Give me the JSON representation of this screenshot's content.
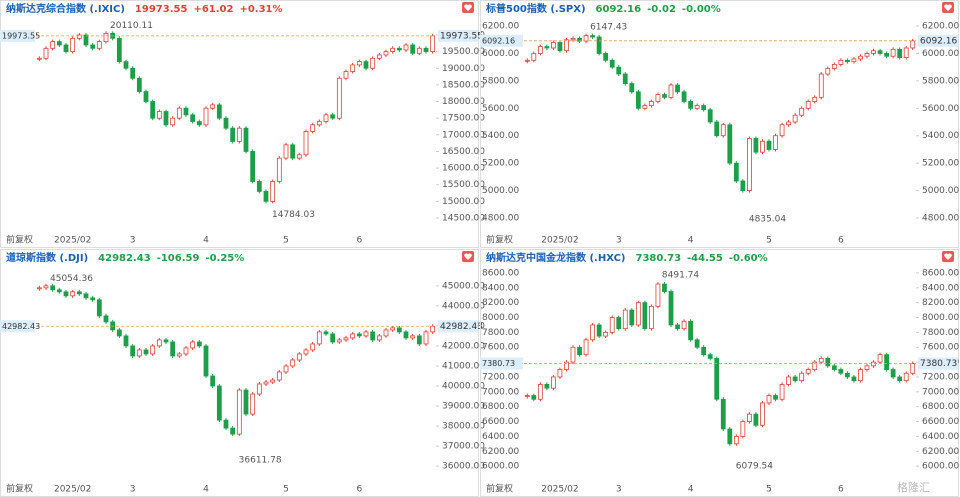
{
  "chart_data": [
    {
      "type": "candlestick",
      "title": "纳斯达克综合指数 (.IXIC)",
      "price": 19973.55,
      "change": "+61.02",
      "change_pct": "+0.31%",
      "price_color": "#e0403a",
      "adjust_label": "前复权",
      "axis_sides": [
        "right"
      ],
      "up_color": "#e0403a",
      "down_color": "#1f9e4a",
      "categories": [
        null,
        null,
        null,
        null,
        null,
        "2025/02",
        null,
        null,
        null,
        null,
        null,
        null,
        null,
        null,
        "3",
        null,
        null,
        null,
        null,
        null,
        null,
        null,
        null,
        null,
        null,
        "4",
        null,
        null,
        null,
        null,
        null,
        null,
        null,
        null,
        null,
        null,
        null,
        "5",
        null,
        null,
        null,
        null,
        null,
        null,
        null,
        null,
        null,
        null,
        "6",
        null,
        null,
        null,
        null,
        null,
        null,
        null,
        null,
        null,
        null,
        null
      ],
      "values": [
        19300,
        19600,
        19800,
        19700,
        19500,
        19900,
        20000,
        19700,
        19600,
        19800,
        20050,
        19900,
        19200,
        19000,
        18700,
        18300,
        18000,
        17500,
        17700,
        17300,
        17500,
        17800,
        17600,
        17400,
        17300,
        17800,
        17900,
        17500,
        17200,
        16800,
        17200,
        16500,
        15600,
        15300,
        15000,
        15600,
        16300,
        16700,
        16300,
        16400,
        17100,
        17300,
        17400,
        17600,
        17500,
        18700,
        18900,
        19100,
        19200,
        19000,
        19300,
        19400,
        19500,
        19600,
        19550,
        19700,
        19450,
        19600,
        19500,
        19973.55
      ],
      "high": 20110.11,
      "low": 14784.03,
      "ylim": [
        14080,
        20450
      ],
      "yticks": [
        {
          "value": 14500,
          "label": "14500.00"
        },
        {
          "value": 15000,
          "label": "15000.00"
        },
        {
          "value": 15500,
          "label": "15500.00"
        },
        {
          "value": 16000,
          "label": "16000.00"
        },
        {
          "value": 16500,
          "label": "16500.00"
        },
        {
          "value": 17000,
          "label": "17000.00"
        },
        {
          "value": 17500,
          "label": "17500.00"
        },
        {
          "value": 18000,
          "label": "18000.00"
        },
        {
          "value": 18500,
          "label": "18500.00"
        },
        {
          "value": 19000,
          "label": "19000.00"
        },
        {
          "value": 19500,
          "label": "19500.00"
        },
        {
          "value": 20000,
          "label": "20000.00"
        }
      ]
    },
    {
      "type": "candlestick",
      "title": "标普500指数 (.SPX)",
      "price": 6092.16,
      "change": "-0.02",
      "change_pct": "-0.00%",
      "price_color": "#1f9e4a",
      "adjust_label": "前复权",
      "axis_sides": [
        "left",
        "right"
      ],
      "up_color": "#e0403a",
      "down_color": "#1f9e4a",
      "categories": [
        null,
        null,
        null,
        null,
        null,
        "2025/02",
        null,
        null,
        null,
        null,
        null,
        null,
        null,
        null,
        "3",
        null,
        null,
        null,
        null,
        null,
        null,
        null,
        null,
        null,
        null,
        "4",
        null,
        null,
        null,
        null,
        null,
        null,
        null,
        null,
        null,
        null,
        null,
        "5",
        null,
        null,
        null,
        null,
        null,
        null,
        null,
        null,
        null,
        null,
        "6",
        null,
        null,
        null,
        null,
        null,
        null,
        null,
        null,
        null,
        null,
        null
      ],
      "values": [
        5950,
        6000,
        6050,
        6040,
        6080,
        6020,
        6100,
        6110,
        6090,
        6130,
        6120,
        6000,
        5950,
        5900,
        5850,
        5780,
        5720,
        5600,
        5620,
        5650,
        5700,
        5680,
        5770,
        5720,
        5650,
        5600,
        5620,
        5590,
        5500,
        5400,
        5480,
        5200,
        5070,
        5000,
        5380,
        5280,
        5360,
        5300,
        5400,
        5480,
        5500,
        5550,
        5600,
        5650,
        5680,
        5850,
        5890,
        5920,
        5950,
        5940,
        5960,
        5980,
        6000,
        6020,
        6000,
        5980,
        6030,
        5970,
        6040,
        6092.16
      ],
      "high": 6147.43,
      "low": 4835.04,
      "ylim": [
        4698,
        6244
      ],
      "yticks": [
        {
          "value": 4800,
          "label": "4800.00"
        },
        {
          "value": 5000,
          "label": "5000.00"
        },
        {
          "value": 5200,
          "label": "5200.00"
        },
        {
          "value": 5400,
          "label": "5400.00"
        },
        {
          "value": 5600,
          "label": "5600.00"
        },
        {
          "value": 5800,
          "label": "5800.00"
        },
        {
          "value": 6000,
          "label": "6000.00"
        },
        {
          "value": 6200,
          "label": "6200.00"
        }
      ]
    },
    {
      "type": "candlestick",
      "title": "道琼斯指数 (.DJI)",
      "price": 42982.43,
      "change": "-106.59",
      "change_pct": "-0.25%",
      "price_color": "#1f9e4a",
      "adjust_label": "前复权",
      "axis_sides": [
        "right"
      ],
      "up_color": "#e0403a",
      "down_color": "#1f9e4a",
      "categories": [
        null,
        null,
        null,
        null,
        null,
        "2025/02",
        null,
        null,
        null,
        null,
        null,
        null,
        null,
        null,
        "3",
        null,
        null,
        null,
        null,
        null,
        null,
        null,
        null,
        null,
        null,
        "4",
        null,
        null,
        null,
        null,
        null,
        null,
        null,
        null,
        null,
        null,
        null,
        "5",
        null,
        null,
        null,
        null,
        null,
        null,
        null,
        null,
        null,
        null,
        "6",
        null,
        null,
        null,
        null,
        null,
        null,
        null,
        null,
        null,
        null,
        null
      ],
      "values": [
        44900,
        45000,
        44800,
        44700,
        44500,
        44700,
        44600,
        44400,
        44300,
        43500,
        43200,
        42800,
        42500,
        42000,
        41500,
        41800,
        41600,
        42000,
        42300,
        42200,
        41500,
        41600,
        41900,
        42200,
        42000,
        40500,
        40000,
        38300,
        37900,
        37600,
        39800,
        38600,
        39600,
        40100,
        40200,
        40300,
        40700,
        41000,
        41300,
        41600,
        41800,
        42100,
        42700,
        42600,
        42200,
        42300,
        42400,
        42600,
        42500,
        42700,
        42300,
        42500,
        42800,
        42900,
        42700,
        42400,
        42500,
        42100,
        42700,
        42982.43
      ],
      "high": 45054.36,
      "low": 36611.78,
      "ylim": [
        35260,
        45840
      ],
      "yticks": [
        {
          "value": 36000,
          "label": "36000.00"
        },
        {
          "value": 37000,
          "label": "37000.00"
        },
        {
          "value": 38000,
          "label": "38000.00"
        },
        {
          "value": 39000,
          "label": "39000.00"
        },
        {
          "value": 40000,
          "label": "40000.00"
        },
        {
          "value": 41000,
          "label": "41000.00"
        },
        {
          "value": 42000,
          "label": "42000.00"
        },
        {
          "value": 43000,
          "label": "43000.00"
        },
        {
          "value": 44000,
          "label": "44000.00"
        },
        {
          "value": 45000,
          "label": "45000.00"
        }
      ]
    },
    {
      "type": "candlestick",
      "title": "纳斯达克中国金龙指数 (.HXC)",
      "price": 7380.73,
      "change": "-44.55",
      "change_pct": "-0.60%",
      "price_color": "#1f9e4a",
      "adjust_label": "前复权",
      "axis_sides": [
        "left",
        "right"
      ],
      "up_color": "#e0403a",
      "down_color": "#1f9e4a",
      "categories": [
        null,
        null,
        null,
        null,
        null,
        "2025/02",
        null,
        null,
        null,
        null,
        null,
        null,
        null,
        null,
        "3",
        null,
        null,
        null,
        null,
        null,
        null,
        null,
        null,
        null,
        null,
        "4",
        null,
        null,
        null,
        null,
        null,
        null,
        null,
        null,
        null,
        null,
        null,
        "5",
        null,
        null,
        null,
        null,
        null,
        null,
        null,
        null,
        null,
        null,
        "6",
        null,
        null,
        null,
        null,
        null,
        null,
        null,
        null,
        null,
        null,
        null
      ],
      "values": [
        6950,
        6900,
        7100,
        7050,
        7200,
        7300,
        7400,
        7600,
        7500,
        7700,
        7900,
        7750,
        7800,
        8000,
        7850,
        8100,
        7900,
        8200,
        7850,
        8150,
        8450,
        8350,
        7900,
        7850,
        7950,
        7700,
        7600,
        7500,
        7450,
        6900,
        6500,
        6300,
        6400,
        6600,
        6700,
        6550,
        6850,
        6950,
        6900,
        7100,
        7200,
        7150,
        7250,
        7300,
        7400,
        7450,
        7350,
        7300,
        7250,
        7200,
        7150,
        7300,
        7350,
        7400,
        7500,
        7300,
        7200,
        7150,
        7250,
        7380.73
      ],
      "high": 8491.74,
      "low": 6079.54,
      "ylim": [
        5800,
        8653
      ],
      "yticks": [
        {
          "value": 6000,
          "label": "6000.00"
        },
        {
          "value": 6200,
          "label": "6200.00"
        },
        {
          "value": 6400,
          "label": "6400.00"
        },
        {
          "value": 6600,
          "label": "6600.00"
        },
        {
          "value": 6800,
          "label": "6800.00"
        },
        {
          "value": 7000,
          "label": "7000.00"
        },
        {
          "value": 7200,
          "label": "7200.00"
        },
        {
          "value": 7400,
          "label": "7400.00"
        },
        {
          "value": 7600,
          "label": "7600.00"
        },
        {
          "value": 7800,
          "label": "7800.00"
        },
        {
          "value": 8000,
          "label": "8000.00"
        },
        {
          "value": 8200,
          "label": "8200.00"
        },
        {
          "value": 8400,
          "label": "8400.00"
        },
        {
          "value": 8600,
          "label": "8600.00"
        }
      ]
    }
  ],
  "watermark": "格隆汇"
}
